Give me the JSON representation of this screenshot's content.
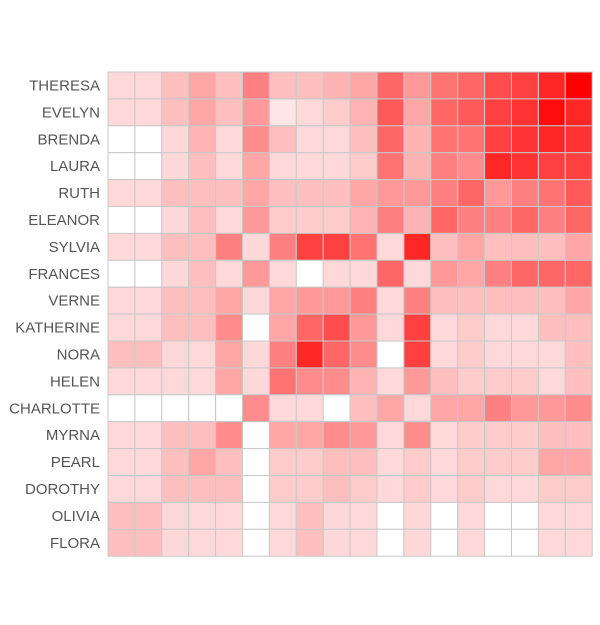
{
  "chart_data": {
    "type": "heatmap",
    "title": "",
    "xlabel": "",
    "ylabel": "",
    "rows": [
      "THERESA",
      "EVELYN",
      "BRENDA",
      "LAURA",
      "RUTH",
      "ELEANOR",
      "SYLVIA",
      "FRANCES",
      "VERNE",
      "KATHERINE",
      "NORA",
      "HELEN",
      "CHARLOTTE",
      "MYRNA",
      "PEARL",
      "DOROTHY",
      "OLIVIA",
      "FLORA"
    ],
    "columns": [
      "",
      "",
      "",
      "",
      "",
      "",
      "",
      "",
      "",
      "",
      "",
      "",
      "",
      "",
      "",
      "",
      "",
      ""
    ],
    "value_range": [
      0,
      1
    ],
    "color_low": "#ffffff",
    "color_high": "#ff0000",
    "grid_color": "#c8c8c8",
    "values": [
      [
        0.15,
        0.15,
        0.25,
        0.35,
        0.25,
        0.5,
        0.25,
        0.25,
        0.3,
        0.35,
        0.6,
        0.4,
        0.55,
        0.6,
        0.7,
        0.75,
        0.85,
        1.0
      ],
      [
        0.15,
        0.15,
        0.25,
        0.35,
        0.25,
        0.4,
        0.1,
        0.15,
        0.2,
        0.3,
        0.65,
        0.35,
        0.6,
        0.65,
        0.75,
        0.8,
        0.95,
        0.85
      ],
      [
        0.0,
        0.0,
        0.15,
        0.3,
        0.15,
        0.45,
        0.25,
        0.15,
        0.15,
        0.25,
        0.6,
        0.3,
        0.55,
        0.55,
        0.75,
        0.8,
        0.85,
        0.8
      ],
      [
        0.0,
        0.0,
        0.15,
        0.25,
        0.15,
        0.35,
        0.15,
        0.15,
        0.15,
        0.2,
        0.55,
        0.3,
        0.5,
        0.45,
        0.85,
        0.8,
        0.75,
        0.75
      ],
      [
        0.15,
        0.15,
        0.25,
        0.25,
        0.25,
        0.35,
        0.25,
        0.25,
        0.25,
        0.35,
        0.4,
        0.4,
        0.5,
        0.6,
        0.4,
        0.5,
        0.55,
        0.65
      ],
      [
        0.0,
        0.0,
        0.15,
        0.25,
        0.15,
        0.4,
        0.2,
        0.2,
        0.2,
        0.3,
        0.5,
        0.3,
        0.6,
        0.5,
        0.5,
        0.6,
        0.5,
        0.6
      ],
      [
        0.15,
        0.15,
        0.25,
        0.25,
        0.5,
        0.15,
        0.5,
        0.75,
        0.75,
        0.55,
        0.15,
        0.85,
        0.25,
        0.35,
        0.25,
        0.25,
        0.25,
        0.35
      ],
      [
        0.0,
        0.0,
        0.15,
        0.25,
        0.15,
        0.4,
        0.15,
        0.0,
        0.15,
        0.15,
        0.6,
        0.15,
        0.4,
        0.35,
        0.5,
        0.6,
        0.6,
        0.6
      ],
      [
        0.15,
        0.15,
        0.25,
        0.25,
        0.35,
        0.15,
        0.35,
        0.4,
        0.4,
        0.5,
        0.15,
        0.5,
        0.25,
        0.25,
        0.25,
        0.25,
        0.25,
        0.35
      ],
      [
        0.15,
        0.15,
        0.25,
        0.25,
        0.45,
        0.0,
        0.35,
        0.6,
        0.7,
        0.4,
        0.15,
        0.75,
        0.15,
        0.2,
        0.15,
        0.15,
        0.25,
        0.25
      ],
      [
        0.25,
        0.25,
        0.15,
        0.15,
        0.35,
        0.15,
        0.5,
        0.85,
        0.6,
        0.45,
        0.0,
        0.75,
        0.15,
        0.2,
        0.15,
        0.15,
        0.15,
        0.25
      ],
      [
        0.15,
        0.15,
        0.15,
        0.15,
        0.35,
        0.15,
        0.55,
        0.45,
        0.45,
        0.3,
        0.15,
        0.4,
        0.25,
        0.2,
        0.2,
        0.2,
        0.15,
        0.25
      ],
      [
        0.0,
        0.0,
        0.0,
        0.0,
        0.0,
        0.45,
        0.15,
        0.15,
        0.0,
        0.25,
        0.35,
        0.15,
        0.35,
        0.35,
        0.5,
        0.4,
        0.4,
        0.45
      ],
      [
        0.15,
        0.15,
        0.25,
        0.25,
        0.45,
        0.0,
        0.35,
        0.35,
        0.45,
        0.4,
        0.15,
        0.45,
        0.15,
        0.2,
        0.2,
        0.2,
        0.25,
        0.25
      ],
      [
        0.15,
        0.15,
        0.25,
        0.35,
        0.25,
        0.0,
        0.2,
        0.2,
        0.25,
        0.25,
        0.15,
        0.2,
        0.15,
        0.2,
        0.2,
        0.2,
        0.35,
        0.35
      ],
      [
        0.15,
        0.15,
        0.25,
        0.25,
        0.25,
        0.0,
        0.2,
        0.2,
        0.25,
        0.2,
        0.15,
        0.2,
        0.15,
        0.2,
        0.15,
        0.15,
        0.2,
        0.2
      ],
      [
        0.25,
        0.25,
        0.15,
        0.15,
        0.15,
        0.0,
        0.15,
        0.25,
        0.15,
        0.15,
        0.0,
        0.15,
        0.0,
        0.15,
        0.0,
        0.0,
        0.15,
        0.15
      ],
      [
        0.25,
        0.25,
        0.15,
        0.15,
        0.15,
        0.0,
        0.15,
        0.25,
        0.15,
        0.15,
        0.0,
        0.15,
        0.0,
        0.15,
        0.0,
        0.0,
        0.15,
        0.15
      ]
    ]
  }
}
